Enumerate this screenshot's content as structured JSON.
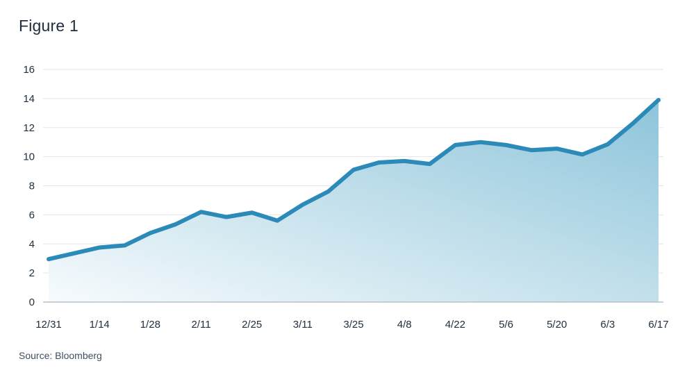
{
  "chart_data": {
    "type": "area",
    "title": "Figure 1",
    "source": "Source: Bloomberg",
    "xlabel": "",
    "ylabel": "",
    "ylim": [
      0,
      16
    ],
    "y_ticks": [
      0,
      2,
      4,
      6,
      8,
      10,
      12,
      14,
      16
    ],
    "x_tick_labels": [
      "12/31",
      "1/14",
      "1/28",
      "2/11",
      "2/25",
      "3/11",
      "3/25",
      "4/8",
      "4/22",
      "5/6",
      "5/20",
      "6/3",
      "6/17"
    ],
    "x": [
      "12/31",
      "1/7",
      "1/14",
      "1/21",
      "1/28",
      "2/4",
      "2/11",
      "2/18",
      "2/25",
      "3/4",
      "3/11",
      "3/18",
      "3/25",
      "4/1",
      "4/8",
      "4/15",
      "4/22",
      "4/29",
      "5/6",
      "5/13",
      "5/20",
      "5/27",
      "6/3",
      "6/10",
      "6/17"
    ],
    "values": [
      2.95,
      3.35,
      3.75,
      3.9,
      4.75,
      5.35,
      6.2,
      5.85,
      6.15,
      5.6,
      6.7,
      7.6,
      9.1,
      9.6,
      9.7,
      9.5,
      10.8,
      11.0,
      10.8,
      10.45,
      10.55,
      10.15,
      10.85,
      12.3,
      13.9
    ],
    "grid": true,
    "legend": "none",
    "colors": {
      "line": "#2b8ab8",
      "fill_top": "#8dc4da",
      "fill_bottom": "#f7fbfd",
      "grid": "#e3e6ea",
      "axis": "#b9bfc6",
      "text": "#1f2d3d"
    }
  }
}
